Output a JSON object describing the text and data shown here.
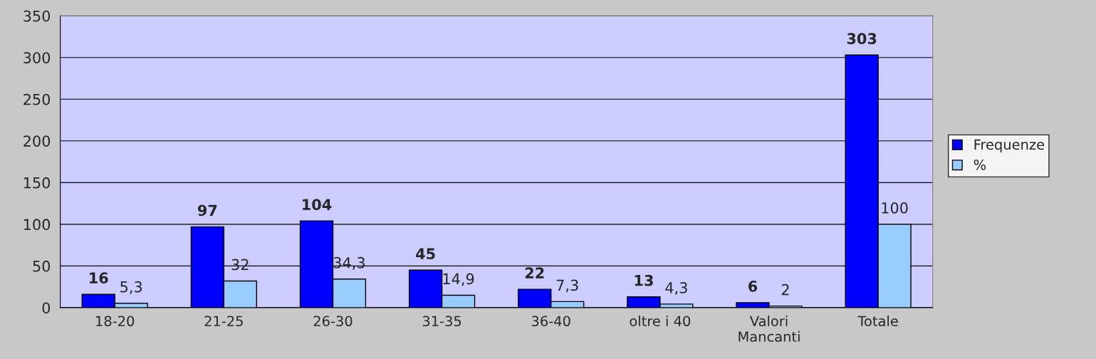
{
  "chart_data": {
    "type": "bar",
    "categories": [
      "18-20",
      "21-25",
      "26-30",
      "31-35",
      "36-40",
      "oltre i 40",
      "Valori\nMancanti",
      "Totale"
    ],
    "series": [
      {
        "name": "Frequenze",
        "color": "#0000ff",
        "values": [
          16,
          97,
          104,
          45,
          22,
          13,
          6,
          303
        ],
        "value_labels": [
          "16",
          "97",
          "104",
          "45",
          "22",
          "13",
          "6",
          "303"
        ]
      },
      {
        "name": "%",
        "color": "#99ccff",
        "values": [
          5.3,
          32,
          34.3,
          14.9,
          7.3,
          4.3,
          2,
          100
        ],
        "value_labels": [
          "5,3",
          "32",
          "34,3",
          "14,9",
          "7,3",
          "4,3",
          "2",
          "100"
        ]
      }
    ],
    "ylim": [
      0,
      350
    ],
    "yticks": [
      0,
      50,
      100,
      150,
      200,
      250,
      300,
      350
    ],
    "grid": "y",
    "legend": "right"
  }
}
